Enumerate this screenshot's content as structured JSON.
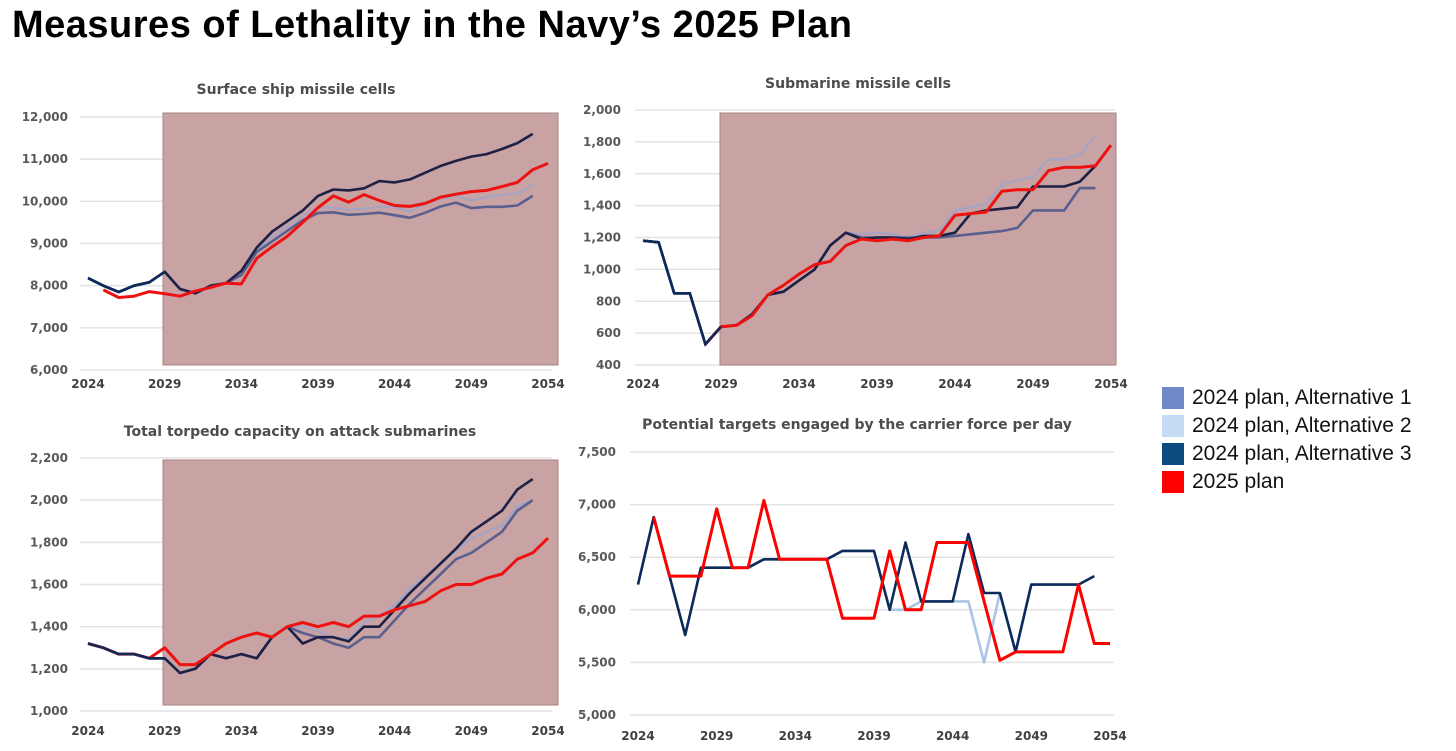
{
  "title": "Measures of Lethality in the Navy’s 2025 Plan",
  "legend": [
    {
      "label": "2024 plan, Alternative 1",
      "color": "#6f88c8"
    },
    {
      "label": "2024 plan, Alternative 2",
      "color": "#c5dcf5"
    },
    {
      "label": "2024 plan, Alternative 3",
      "color": "#0c4a80"
    },
    {
      "label": "2025 plan",
      "color": "#ff0000"
    }
  ],
  "chart_data": [
    {
      "type": "line",
      "title": "Surface ship missile cells",
      "xlim": [
        2024,
        2054
      ],
      "ylim": [
        6000,
        12000
      ],
      "yticks": [
        "6,000",
        "7,000",
        "8,000",
        "9,000",
        "10,000",
        "11,000",
        "12,000"
      ],
      "ytick_values": [
        6000,
        7000,
        8000,
        9000,
        10000,
        11000,
        12000
      ],
      "xticks": [
        "2024",
        "2029",
        "2034",
        "2039",
        "2044",
        "2049",
        "2054"
      ],
      "shaded_from": 2029,
      "series": [
        {
          "name": "2024 plan, Alternative 2",
          "start": 2024,
          "values": [
            8180,
            8000,
            7850,
            8000,
            8080,
            8330,
            7920,
            7820,
            8000,
            8060,
            8300,
            8850,
            9150,
            9400,
            9650,
            9850,
            9850,
            9800,
            9820,
            9870,
            9860,
            9760,
            9950,
            10060,
            10130,
            10030,
            10100,
            10150,
            10180,
            10380
          ]
        },
        {
          "name": "2024 plan, Alternative 1",
          "start": 2024,
          "values": [
            8180,
            8000,
            7850,
            8000,
            8080,
            8330,
            7920,
            7820,
            8000,
            8060,
            8250,
            8800,
            9050,
            9300,
            9550,
            9720,
            9740,
            9680,
            9700,
            9730,
            9670,
            9610,
            9730,
            9880,
            9970,
            9840,
            9870,
            9870,
            9900,
            10130
          ]
        },
        {
          "name": "2024 plan, Alternative 3",
          "start": 2024,
          "values": [
            8180,
            8000,
            7850,
            8000,
            8080,
            8330,
            7920,
            7820,
            8000,
            8060,
            8350,
            8900,
            9280,
            9530,
            9780,
            10130,
            10280,
            10260,
            10310,
            10480,
            10450,
            10520,
            10680,
            10840,
            10960,
            11060,
            11120,
            11240,
            11380,
            11600
          ]
        },
        {
          "name": "2025 plan",
          "start": 2025,
          "values": [
            7900,
            7720,
            7750,
            7860,
            7810,
            7750,
            7870,
            7960,
            8060,
            8040,
            8650,
            8920,
            9170,
            9500,
            9850,
            10130,
            9980,
            10160,
            10020,
            9900,
            9880,
            9950,
            10100,
            10170,
            10230,
            10260,
            10350,
            10450,
            10750,
            10900
          ]
        }
      ]
    },
    {
      "type": "line",
      "title": "Submarine missile cells",
      "xlim": [
        2024,
        2054
      ],
      "ylim": [
        400,
        2000
      ],
      "yticks": [
        "400",
        "600",
        "800",
        "1,000",
        "1,200",
        "1,400",
        "1,600",
        "1,800",
        "2,000"
      ],
      "ytick_values": [
        400,
        600,
        800,
        1000,
        1200,
        1400,
        1600,
        1800,
        2000
      ],
      "xticks": [
        "2024",
        "2029",
        "2034",
        "2039",
        "2044",
        "2049",
        "2054"
      ],
      "shaded_from": 2029,
      "series": [
        {
          "name": "2024 plan, Alternative 2",
          "start": 2024,
          "values": [
            1180,
            1170,
            850,
            850,
            530,
            640,
            650,
            720,
            840,
            860,
            930,
            1000,
            1150,
            1230,
            1220,
            1230,
            1220,
            1200,
            1230,
            1240,
            1370,
            1390,
            1410,
            1530,
            1560,
            1580,
            1690,
            1690,
            1720,
            1840
          ]
        },
        {
          "name": "2024 plan, Alternative 1",
          "start": 2024,
          "values": [
            1180,
            1170,
            850,
            850,
            530,
            640,
            650,
            720,
            840,
            860,
            930,
            1000,
            1150,
            1230,
            1200,
            1200,
            1200,
            1200,
            1200,
            1200,
            1210,
            1220,
            1230,
            1240,
            1260,
            1370,
            1370,
            1370,
            1510,
            1510
          ]
        },
        {
          "name": "2024 plan, Alternative 3",
          "start": 2024,
          "values": [
            1180,
            1170,
            850,
            850,
            530,
            640,
            650,
            720,
            840,
            860,
            930,
            1000,
            1150,
            1230,
            1190,
            1200,
            1200,
            1190,
            1210,
            1210,
            1230,
            1350,
            1370,
            1380,
            1390,
            1520,
            1520,
            1520,
            1550,
            1650
          ]
        },
        {
          "name": "2025 plan",
          "start": 2028,
          "values": [
            530,
            640,
            650,
            710,
            840,
            900,
            970,
            1030,
            1050,
            1150,
            1190,
            1180,
            1190,
            1180,
            1200,
            1210,
            1340,
            1350,
            1360,
            1490,
            1500,
            1500,
            1620,
            1640,
            1640,
            1650,
            1780
          ]
        }
      ]
    },
    {
      "type": "line",
      "title": "Total torpedo capacity on attack submarines",
      "xlim": [
        2024,
        2054
      ],
      "ylim": [
        1000,
        2200
      ],
      "yticks": [
        "1,000",
        "1,200",
        "1,400",
        "1,600",
        "1,800",
        "2,000",
        "2,200"
      ],
      "ytick_values": [
        1000,
        1200,
        1400,
        1600,
        1800,
        2000,
        2200
      ],
      "xticks": [
        "2024",
        "2029",
        "2034",
        "2039",
        "2044",
        "2049",
        "2054"
      ],
      "shaded_from": 2029,
      "series": [
        {
          "name": "2024 plan, Alternative 2",
          "start": 2024,
          "values": [
            1320,
            1300,
            1270,
            1270,
            1250,
            1250,
            1180,
            1200,
            1270,
            1250,
            1270,
            1250,
            1350,
            1400,
            1400,
            1380,
            1350,
            1340,
            1420,
            1450,
            1500,
            1580,
            1640,
            1700,
            1760,
            1820,
            1850,
            1880,
            1970,
            2000
          ]
        },
        {
          "name": "2024 plan, Alternative 1",
          "start": 2024,
          "values": [
            1320,
            1300,
            1270,
            1270,
            1250,
            1250,
            1180,
            1200,
            1270,
            1250,
            1270,
            1250,
            1350,
            1400,
            1370,
            1350,
            1320,
            1300,
            1350,
            1350,
            1430,
            1510,
            1580,
            1650,
            1720,
            1750,
            1800,
            1850,
            1950,
            2000
          ]
        },
        {
          "name": "2024 plan, Alternative 3",
          "start": 2024,
          "values": [
            1320,
            1300,
            1270,
            1270,
            1250,
            1250,
            1180,
            1200,
            1270,
            1250,
            1270,
            1250,
            1350,
            1400,
            1320,
            1350,
            1350,
            1330,
            1400,
            1400,
            1480,
            1560,
            1630,
            1700,
            1770,
            1850,
            1900,
            1950,
            2050,
            2100
          ]
        },
        {
          "name": "2025 plan",
          "start": 2024,
          "values": [
            1320,
            1300,
            1270,
            1270,
            1250,
            1300,
            1220,
            1220,
            1270,
            1320,
            1350,
            1370,
            1350,
            1400,
            1420,
            1400,
            1420,
            1400,
            1450,
            1450,
            1480,
            1500,
            1520,
            1570,
            1600,
            1600,
            1630,
            1650,
            1720,
            1750,
            1820
          ]
        }
      ]
    },
    {
      "type": "line",
      "title": "Potential targets engaged by the carrier force per day",
      "xlim": [
        2024,
        2054
      ],
      "ylim": [
        5000,
        7500
      ],
      "yticks": [
        "5,000",
        "5,500",
        "6,000",
        "6,500",
        "7,000",
        "7,500"
      ],
      "ytick_values": [
        5000,
        5500,
        6000,
        6500,
        7000,
        7500
      ],
      "xticks": [
        "2024",
        "2029",
        "2034",
        "2039",
        "2044",
        "2049",
        "2054"
      ],
      "shaded_from": null,
      "series": [
        {
          "name": "2024 plan, Alternative 2",
          "start": 2024,
          "values": [
            6240,
            6880,
            6320,
            5760,
            6400,
            6400,
            6400,
            6400,
            6480,
            6480,
            6480,
            6480,
            6480,
            6560,
            6560,
            6560,
            6000,
            6000,
            6080,
            6080,
            6080,
            6080,
            5500,
            6160,
            5600,
            6240,
            6240,
            6240,
            6240,
            6320
          ]
        },
        {
          "name": "2024 plan, Alternative 3",
          "start": 2024,
          "values": [
            6240,
            6880,
            6320,
            5760,
            6400,
            6400,
            6400,
            6400,
            6480,
            6480,
            6480,
            6480,
            6480,
            6560,
            6560,
            6560,
            6000,
            6640,
            6080,
            6080,
            6080,
            6720,
            6160,
            6160,
            5600,
            6240,
            6240,
            6240,
            6240,
            6320
          ]
        },
        {
          "name": "2025 plan",
          "start": 2025,
          "values": [
            6880,
            6320,
            6320,
            6320,
            6960,
            6400,
            6400,
            7040,
            6480,
            6480,
            6480,
            6480,
            5920,
            5920,
            5920,
            6560,
            6000,
            6000,
            6640,
            6640,
            6640,
            6080,
            5520,
            5600,
            5600,
            5600,
            5600,
            6240,
            5680,
            5680
          ]
        }
      ]
    }
  ]
}
